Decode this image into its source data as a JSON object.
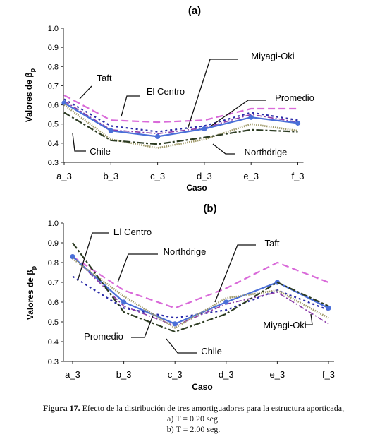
{
  "caption": {
    "figure_label": "Figura 17.",
    "line1": "Efecto de la distribución de tres amortiguadores para la estructura aporticada,",
    "line2": "a) T = 0.20 seg.",
    "line3": "b) T = 2.00 seg."
  },
  "colors": {
    "El Centro": "#2a2aa8",
    "Taft": "#d96ad9",
    "Miyagi-Oki": "#8a3aa8",
    "Promedio": "#4a6fd8",
    "Northdrige": "#a09a6a",
    "Chile": "#2c3b22"
  },
  "chart_data": [
    {
      "type": "line",
      "title": "(a)",
      "xlabel": "Caso",
      "ylabel": "Valores de β",
      "ylabel_sub": "p",
      "categories": [
        "a_3",
        "b_3",
        "c_3",
        "d_3",
        "e_3",
        "f_3"
      ],
      "ylim": [
        0.3,
        1.0
      ],
      "yticks": [
        "0.3",
        "0.4",
        "0.5",
        "0.6",
        "0.7",
        "0.8",
        "0.9",
        "1.0"
      ],
      "grid": false,
      "series": [
        {
          "name": "Taft",
          "values": [
            0.65,
            0.52,
            0.51,
            0.52,
            0.58,
            0.58
          ]
        },
        {
          "name": "El Centro",
          "values": [
            0.63,
            0.49,
            0.46,
            0.49,
            0.56,
            0.52
          ]
        },
        {
          "name": "Miyagi-Oki",
          "values": [
            0.62,
            0.47,
            0.45,
            0.48,
            0.55,
            0.51
          ]
        },
        {
          "name": "Promedio",
          "values": [
            0.61,
            0.465,
            0.435,
            0.475,
            0.535,
            0.505
          ]
        },
        {
          "name": "Northdrige",
          "values": [
            0.6,
            0.42,
            0.375,
            0.42,
            0.5,
            0.465
          ]
        },
        {
          "name": "Chile",
          "values": [
            0.56,
            0.415,
            0.395,
            0.43,
            0.47,
            0.46
          ]
        }
      ],
      "annotations": [
        "Taft",
        "El Centro",
        "Miyagi-Oki",
        "Promedio",
        "Northdrige",
        "Chile"
      ]
    },
    {
      "type": "line",
      "title": "(b)",
      "xlabel": "Caso",
      "ylabel": "Valores de β",
      "ylabel_sub": "p",
      "categories": [
        "a_3",
        "b_3",
        "c_3",
        "d_3",
        "e_3",
        "f_3"
      ],
      "ylim": [
        0.3,
        1.0
      ],
      "yticks": [
        "0.3",
        "0.4",
        "0.5",
        "0.6",
        "0.7",
        "0.8",
        "0.9",
        "1.0"
      ],
      "grid": false,
      "series": [
        {
          "name": "Taft",
          "values": [
            0.83,
            0.66,
            0.57,
            0.67,
            0.8,
            0.7
          ]
        },
        {
          "name": "El Centro",
          "values": [
            0.73,
            0.57,
            0.52,
            0.56,
            0.66,
            0.56
          ]
        },
        {
          "name": "Miyagi-Oki",
          "values": [
            0.83,
            0.58,
            0.48,
            0.59,
            0.65,
            0.49
          ]
        },
        {
          "name": "Promedio",
          "values": [
            0.83,
            0.6,
            0.49,
            0.6,
            0.7,
            0.57
          ]
        },
        {
          "name": "Northdrige",
          "values": [
            0.82,
            0.63,
            0.47,
            0.62,
            0.66,
            0.52
          ]
        },
        {
          "name": "Chile",
          "values": [
            0.9,
            0.55,
            0.45,
            0.54,
            0.7,
            0.58
          ]
        }
      ],
      "annotations": [
        "El Centro",
        "Northdrige",
        "Taft",
        "Promedio",
        "Chile",
        "Miyagi-Oki"
      ]
    }
  ]
}
